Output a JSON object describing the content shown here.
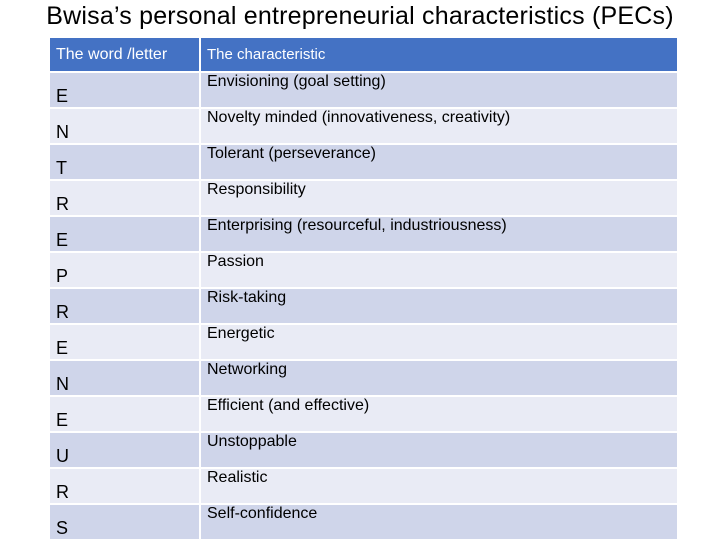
{
  "title": "Bwisa’s personal entrepreneurial characteristics (PECs)",
  "table": {
    "headers": [
      "The word /letter",
      "The characteristic"
    ],
    "rows": [
      {
        "letter": "E",
        "characteristic": "Envisioning (goal setting)"
      },
      {
        "letter": "N",
        "characteristic": "Novelty minded (innovativeness, creativity)"
      },
      {
        "letter": "T",
        "characteristic": "Tolerant (perseverance)"
      },
      {
        "letter": "R",
        "characteristic": "Responsibility"
      },
      {
        "letter": "E",
        "characteristic": "Enterprising (resourceful, industriousness)"
      },
      {
        "letter": "P",
        "characteristic": "Passion"
      },
      {
        "letter": "R",
        "characteristic": "Risk-taking"
      },
      {
        "letter": "E",
        "characteristic": "Energetic"
      },
      {
        "letter": "N",
        "characteristic": "Networking"
      },
      {
        "letter": "E",
        "characteristic": "Efficient (and effective)"
      },
      {
        "letter": "U",
        "characteristic": "Unstoppable"
      },
      {
        "letter": "R",
        "characteristic": "Realistic"
      },
      {
        "letter": "S",
        "characteristic": "Self-confidence"
      }
    ]
  },
  "colors": {
    "header_bg": "#4472c4",
    "row_odd_bg": "#cfd5ea",
    "row_even_bg": "#e9ebf5"
  }
}
